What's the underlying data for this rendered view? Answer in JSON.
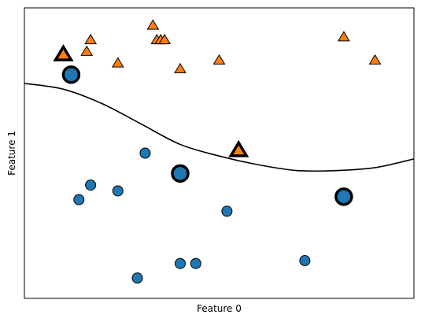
{
  "chart_data": {
    "type": "scatter",
    "title": "",
    "xlabel": "Feature 0",
    "ylabel": "Feature 1",
    "xticks": "none",
    "yticks": "none",
    "grid": false,
    "legend": "none",
    "xlim": [
      0,
      1
    ],
    "ylim": [
      0,
      1
    ],
    "colors": {
      "class0": "#1f77b4",
      "class1": "#ff7f0e",
      "edge": "#000000",
      "boundary": "#000000"
    },
    "series": [
      {
        "marker": "circle",
        "points": [
          [
            0.31,
            0.5
          ],
          [
            0.17,
            0.39
          ],
          [
            0.24,
            0.37
          ],
          [
            0.14,
            0.34
          ],
          [
            0.52,
            0.3
          ],
          [
            0.4,
            0.12
          ],
          [
            0.44,
            0.12
          ],
          [
            0.72,
            0.13
          ],
          [
            0.29,
            0.07
          ]
        ]
      },
      {
        "marker": "triangle",
        "points": [
          [
            0.33,
            0.94
          ],
          [
            0.34,
            0.89
          ],
          [
            0.35,
            0.89
          ],
          [
            0.36,
            0.89
          ],
          [
            0.17,
            0.89
          ],
          [
            0.16,
            0.85
          ],
          [
            0.24,
            0.81
          ],
          [
            0.4,
            0.79
          ],
          [
            0.5,
            0.82
          ],
          [
            0.82,
            0.9
          ],
          [
            0.9,
            0.82
          ]
        ]
      }
    ],
    "support_vectors": [
      {
        "marker": "circle",
        "x": 0.12,
        "y": 0.77
      },
      {
        "marker": "circle",
        "x": 0.4,
        "y": 0.43
      },
      {
        "marker": "circle",
        "x": 0.82,
        "y": 0.35
      },
      {
        "marker": "triangle",
        "x": 0.1,
        "y": 0.84
      },
      {
        "marker": "triangle",
        "x": 0.55,
        "y": 0.51
      }
    ],
    "decision_boundary": {
      "x": [
        0.0,
        0.1,
        0.2,
        0.3,
        0.4,
        0.5,
        0.6,
        0.7,
        0.8,
        0.9,
        1.0
      ],
      "y": [
        0.74,
        0.72,
        0.67,
        0.6,
        0.53,
        0.49,
        0.46,
        0.44,
        0.44,
        0.45,
        0.48
      ]
    }
  }
}
